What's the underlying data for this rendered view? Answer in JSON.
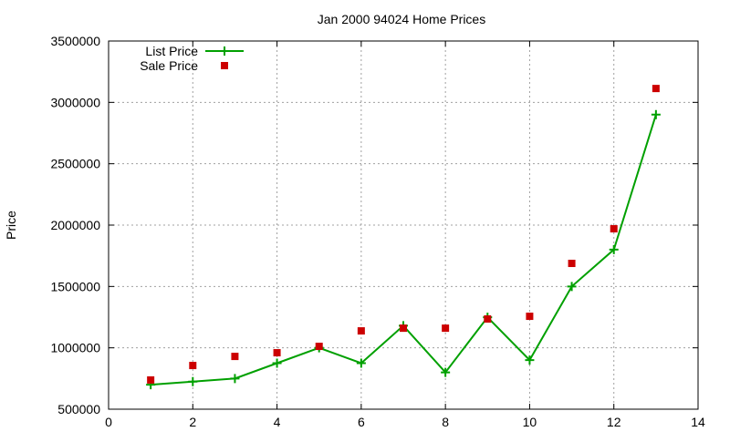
{
  "chart_data": {
    "type": "line",
    "title": "Jan 2000 94024 Home Prices",
    "xlabel": "",
    "ylabel": "Price",
    "xlim": [
      0,
      14
    ],
    "ylim": [
      500000,
      3500000
    ],
    "xticks": [
      0,
      2,
      4,
      6,
      8,
      10,
      12,
      14
    ],
    "yticks": [
      500000,
      1000000,
      1500000,
      2000000,
      2500000,
      3000000,
      3500000
    ],
    "grid": true,
    "legend_position": "top-left",
    "x": [
      1,
      2,
      3,
      4,
      5,
      6,
      7,
      8,
      9,
      10,
      11,
      12,
      13
    ],
    "series": [
      {
        "name": "List Price",
        "style": "linespoints",
        "marker": "plus",
        "color": "#00a000",
        "values": [
          700000,
          725000,
          750000,
          875000,
          1000000,
          875000,
          1180000,
          800000,
          1249000,
          900000,
          1500000,
          1800000,
          2900000
        ]
      },
      {
        "name": "Sale Price",
        "style": "points",
        "marker": "square",
        "color": "#cc0000",
        "values": [
          738000,
          856000,
          930000,
          960000,
          1012000,
          1138000,
          1160000,
          1160000,
          1235000,
          1257000,
          1688000,
          1970000,
          3113000
        ]
      }
    ]
  }
}
